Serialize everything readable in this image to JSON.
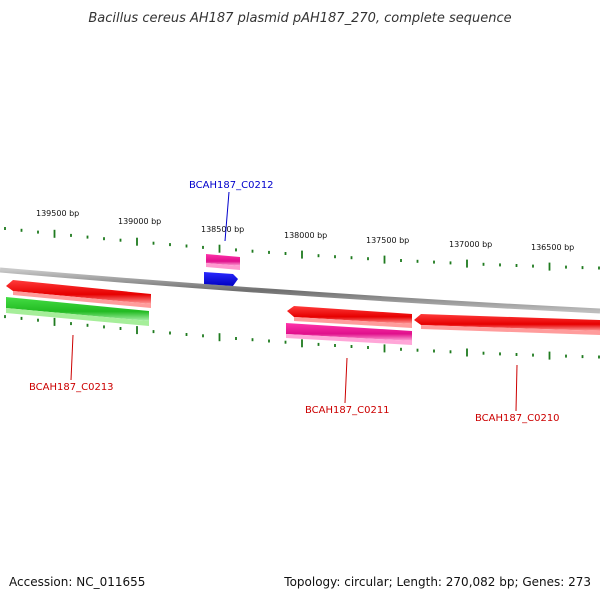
{
  "title": "Bacillus cereus AH187 plasmid pAH187_270, complete sequence",
  "footer": {
    "accession": "Accession: NC_011655",
    "summary": "Topology: circular; Length: 270,082 bp; Genes: 273"
  },
  "colors": {
    "backbone": "#8c8c8c",
    "tick": "#1f7a1f",
    "forward_gene": "#ee0000",
    "reverse_gene": "#ee0000",
    "green_gene": "#33cc33",
    "pink_gene": "#ee1199",
    "blue_gene": "#0000ee",
    "label_red": "#cc0000",
    "label_blue": "#0000cc"
  },
  "scale_labels": [
    "139500 bp",
    "139000 bp",
    "138500 bp",
    "138000 bp",
    "137500 bp",
    "137000 bp",
    "136500 bp"
  ],
  "gene_labels": [
    {
      "name": "BCAH187_C0212",
      "color": "blue"
    },
    {
      "name": "BCAH187_C0213",
      "color": "red"
    },
    {
      "name": "BCAH187_C0211",
      "color": "red"
    },
    {
      "name": "BCAH187_C0210",
      "color": "red"
    }
  ]
}
